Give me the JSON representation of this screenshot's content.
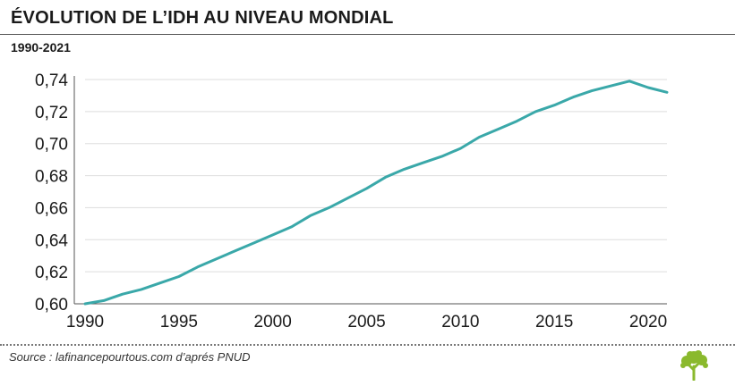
{
  "header": {
    "title": "ÉVOLUTION DE L’IDH AU NIVEAU MONDIAL",
    "subtitle": "1990-2021"
  },
  "footer": {
    "source": "Source : lafinancepourtous.com d’aprés PNUD"
  },
  "colors": {
    "line": "#3aa8a9",
    "grid": "#dddddd",
    "axis": "#555555",
    "logo": "#8ab92d"
  },
  "icons": {
    "logo": "tree-icon"
  },
  "chart_data": {
    "type": "line",
    "title": "ÉVOLUTION DE L’IDH AU NIVEAU MONDIAL",
    "xlabel": "",
    "ylabel": "",
    "xlim": [
      1990,
      2021
    ],
    "ylim": [
      0.6,
      0.74
    ],
    "x_ticks": [
      1990,
      1995,
      2000,
      2005,
      2010,
      2015,
      2020
    ],
    "y_ticks": [
      "0,60",
      "0,62",
      "0,64",
      "0,66",
      "0,68",
      "0,70",
      "0,72",
      "0,74"
    ],
    "y_tick_values": [
      0.6,
      0.62,
      0.64,
      0.66,
      0.68,
      0.7,
      0.72,
      0.74
    ],
    "grid": "horizontal",
    "series": [
      {
        "x": [
          1990,
          1991,
          1992,
          1993,
          1994,
          1995,
          1996,
          1997,
          1998,
          1999,
          2000,
          2001,
          2002,
          2003,
          2004,
          2005,
          2006,
          2007,
          2008,
          2009,
          2010,
          2011,
          2012,
          2013,
          2014,
          2015,
          2016,
          2017,
          2018,
          2019,
          2020,
          2021
        ],
        "values": [
          0.6,
          0.602,
          0.606,
          0.609,
          0.613,
          0.617,
          0.623,
          0.628,
          0.633,
          0.638,
          0.643,
          0.648,
          0.655,
          0.66,
          0.666,
          0.672,
          0.679,
          0.684,
          0.688,
          0.692,
          0.697,
          0.704,
          0.709,
          0.714,
          0.72,
          0.724,
          0.729,
          0.733,
          0.736,
          0.739,
          0.735,
          0.732
        ]
      }
    ]
  }
}
